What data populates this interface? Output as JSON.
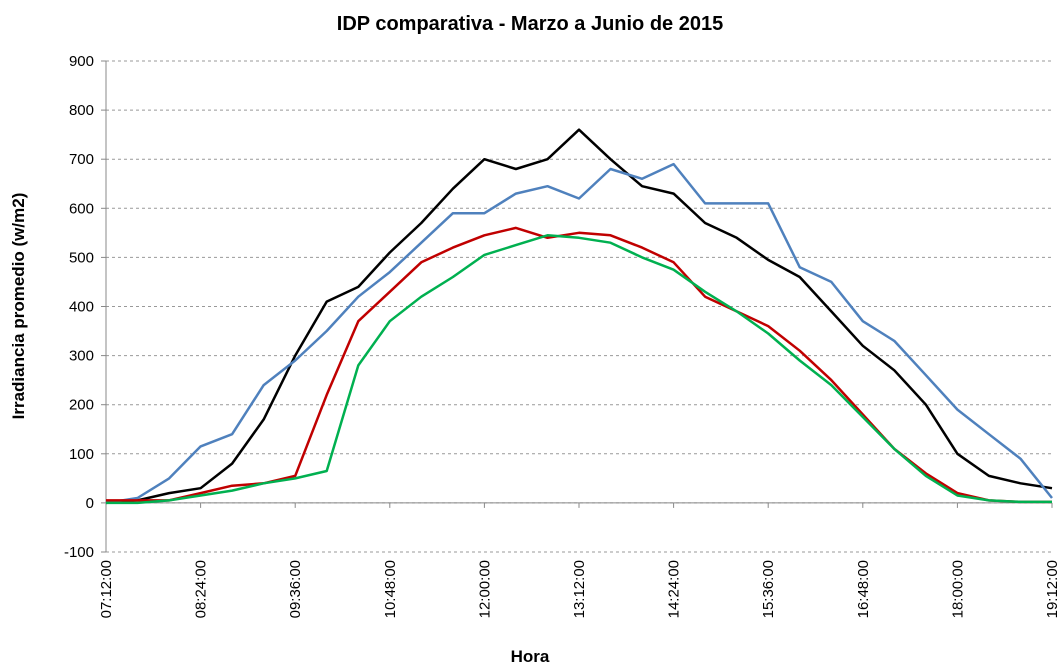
{
  "chart_data": {
    "type": "line",
    "title": "IDP comparativa - Marzo a Junio de 2015",
    "x_label": "Hora",
    "y_label": "Irradiancia promedio (w/m2)",
    "x": [
      "07:12:00",
      "07:36:00",
      "08:00:00",
      "08:24:00",
      "08:48:00",
      "09:12:00",
      "09:36:00",
      "10:00:00",
      "10:24:00",
      "10:48:00",
      "11:12:00",
      "11:36:00",
      "12:00:00",
      "12:24:00",
      "12:48:00",
      "13:12:00",
      "13:36:00",
      "14:00:00",
      "14:24:00",
      "14:48:00",
      "15:12:00",
      "15:36:00",
      "16:00:00",
      "16:24:00",
      "16:48:00",
      "17:12:00",
      "17:36:00",
      "18:00:00",
      "18:24:00",
      "18:48:00",
      "19:12:00"
    ],
    "xticks": [
      "07:12:00",
      "08:24:00",
      "09:36:00",
      "10:48:00",
      "12:00:00",
      "13:12:00",
      "14:24:00",
      "15:36:00",
      "16:48:00",
      "18:00:00",
      "19:12:00"
    ],
    "ylim": [
      -100,
      900
    ],
    "yticks": [
      -100,
      0,
      100,
      200,
      300,
      400,
      500,
      600,
      700,
      800,
      900
    ],
    "grid": true,
    "series": [
      {
        "color": "#000000",
        "values": [
          0,
          5,
          20,
          30,
          80,
          170,
          300,
          410,
          440,
          510,
          570,
          640,
          700,
          680,
          700,
          760,
          700,
          645,
          630,
          570,
          540,
          495,
          460,
          390,
          320,
          270,
          200,
          100,
          55,
          40,
          30
        ]
      },
      {
        "color": "#4f81bd",
        "values": [
          0,
          10,
          50,
          115,
          140,
          240,
          290,
          350,
          420,
          470,
          530,
          590,
          590,
          630,
          645,
          620,
          680,
          660,
          690,
          610,
          610,
          610,
          480,
          450,
          370,
          330,
          260,
          190,
          140,
          90,
          10
        ]
      },
      {
        "color": "#c00000",
        "values": [
          5,
          5,
          5,
          20,
          35,
          40,
          55,
          220,
          370,
          430,
          490,
          520,
          545,
          560,
          540,
          550,
          545,
          520,
          490,
          420,
          390,
          360,
          310,
          250,
          180,
          110,
          60,
          20,
          5,
          2,
          2
        ]
      },
      {
        "color": "#00b050",
        "values": [
          0,
          0,
          5,
          15,
          25,
          40,
          50,
          65,
          280,
          370,
          420,
          460,
          505,
          525,
          545,
          540,
          530,
          500,
          475,
          430,
          390,
          345,
          290,
          240,
          175,
          110,
          55,
          15,
          5,
          2,
          2
        ]
      }
    ]
  }
}
